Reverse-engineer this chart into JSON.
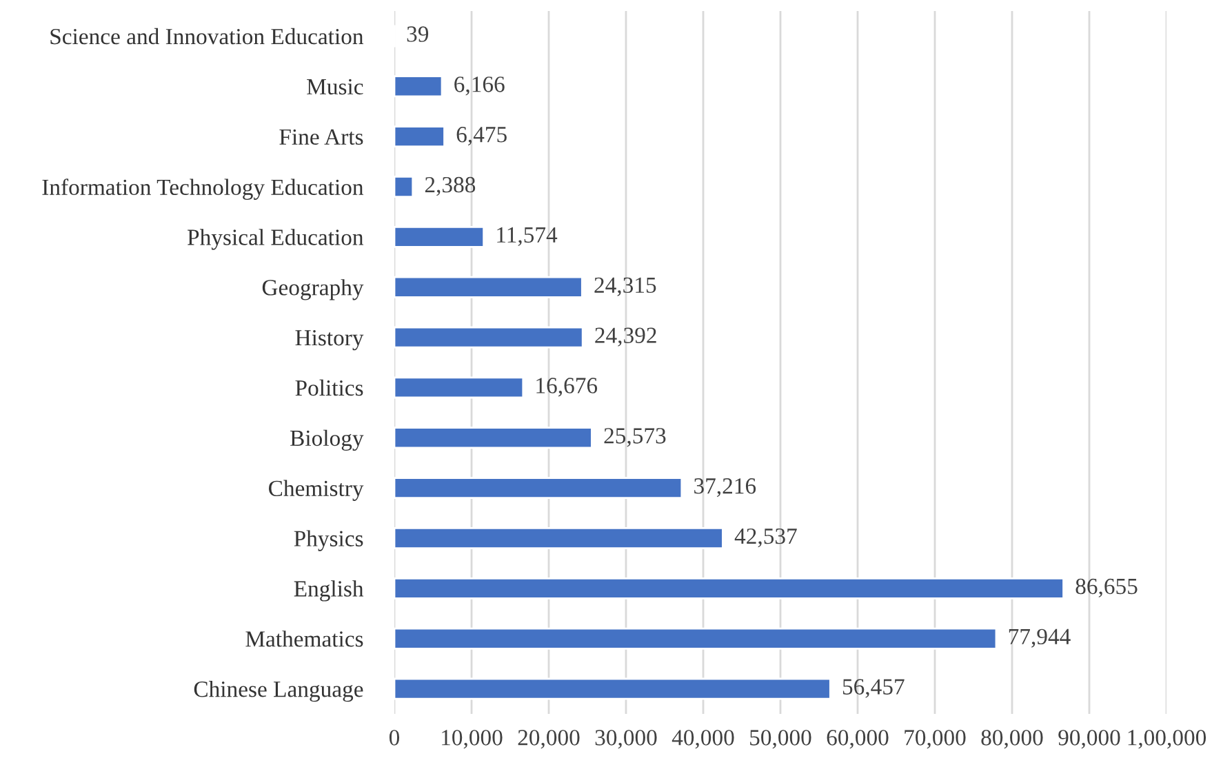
{
  "chart_data": {
    "type": "bar",
    "orientation": "horizontal",
    "categories": [
      "Science and Innovation Education",
      "Music",
      "Fine Arts",
      "Information Technology Education",
      "Physical Education",
      "Geography",
      "History",
      "Politics",
      "Biology",
      "Chemistry",
      "Physics",
      "English",
      "Mathematics",
      "Chinese Language"
    ],
    "values": [
      39,
      6166,
      6475,
      2388,
      11574,
      24315,
      24392,
      16676,
      25573,
      37216,
      42537,
      86655,
      77944,
      56457
    ],
    "value_labels": [
      "39",
      "6,166",
      "6,475",
      "2,388",
      "11,574",
      "24,315",
      "24,392",
      "16,676",
      "25,573",
      "37,216",
      "42,537",
      "86,655",
      "77,944",
      "56,457"
    ],
    "color": "#4472c4",
    "xlim": [
      0,
      100000
    ],
    "xticks": [
      0,
      {
        "value": 10000,
        "label": "10,000"
      },
      {
        "value": 20000,
        "label": "20,000"
      },
      {
        "value": 30000,
        "label": "30,000"
      },
      {
        "value": 40000,
        "label": "40,000"
      },
      {
        "value": 50000,
        "label": "50,000"
      },
      {
        "value": 60000,
        "label": "60,000"
      },
      {
        "value": 70000,
        "label": "70,000"
      },
      {
        "value": 80000,
        "label": "80,000"
      },
      {
        "value": 90000,
        "label": "90,000"
      },
      {
        "value": 100000,
        "label": "1,00,000"
      }
    ],
    "grid": "x"
  }
}
